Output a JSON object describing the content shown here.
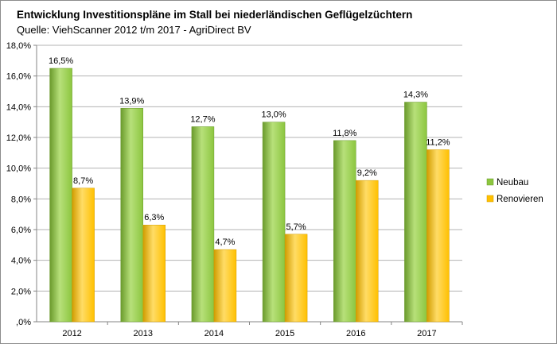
{
  "title": "Entwicklung Investitionspläne im Stall bei niederländischen Geflügelzüchtern",
  "subtitle": "Quelle: ViehScanner 2012 t/m 2017 - AgriDirect BV",
  "colors": {
    "neubau": "#8cc63f",
    "renovieren": "#ffc000"
  },
  "chart_data": {
    "type": "bar",
    "categories": [
      "2012",
      "2013",
      "2014",
      "2015",
      "2016",
      "2017"
    ],
    "series": [
      {
        "name": "Neubau",
        "values": [
          16.5,
          13.9,
          12.7,
          13.0,
          11.8,
          14.3
        ],
        "labels": [
          "16,5%",
          "13,9%",
          "12,7%",
          "13,0%",
          "11,8%",
          "14,3%"
        ]
      },
      {
        "name": "Renovieren",
        "values": [
          8.7,
          6.3,
          4.7,
          5.7,
          9.2,
          11.2
        ],
        "labels": [
          "8,7%",
          "6,3%",
          "4,7%",
          "5,7%",
          "9,2%",
          "11,2%"
        ]
      }
    ],
    "ylim": [
      0,
      18
    ],
    "yticks": [
      ",0%",
      "2,0%",
      "4,0%",
      "6,0%",
      "8,0%",
      "10,0%",
      "12,0%",
      "14,0%",
      "16,0%",
      "18,0%"
    ],
    "grid": true,
    "legend_position": "right"
  }
}
